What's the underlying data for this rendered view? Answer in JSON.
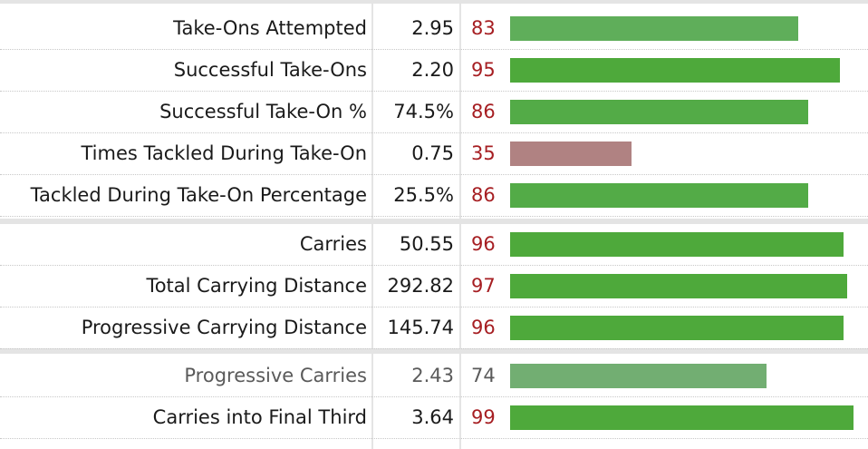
{
  "colors": {
    "percentile_text": "#a61e22",
    "muted_text": "#5a5a5a",
    "bar_high": "#4ea93b",
    "bar_mid": "#5fae5a",
    "bar_mid_muted": "#72ae72",
    "bar_low": "#b08282"
  },
  "chart_data": {
    "type": "bar",
    "xlim": [
      0,
      100
    ],
    "rows": [
      {
        "label": "Take-Ons Attempted",
        "value": "2.95",
        "percentile": 83,
        "color": "#5fae5a",
        "muted": false
      },
      {
        "label": "Successful Take-Ons",
        "value": "2.20",
        "percentile": 95,
        "color": "#4ea93b",
        "muted": false
      },
      {
        "label": "Successful Take-On %",
        "value": "74.5%",
        "percentile": 86,
        "color": "#53ab47",
        "muted": false
      },
      {
        "label": "Times Tackled During Take-On",
        "value": "0.75",
        "percentile": 35,
        "color": "#b08282",
        "muted": false
      },
      {
        "label": "Tackled During Take-On Percentage",
        "value": "25.5%",
        "percentile": 86,
        "color": "#53ab47",
        "muted": false
      },
      {
        "label": "Carries",
        "value": "50.55",
        "percentile": 96,
        "color": "#4ea93b",
        "muted": false
      },
      {
        "label": "Total Carrying Distance",
        "value": "292.82",
        "percentile": 97,
        "color": "#4ea93b",
        "muted": false
      },
      {
        "label": "Progressive Carrying Distance",
        "value": "145.74",
        "percentile": 96,
        "color": "#4ea93b",
        "muted": false
      },
      {
        "label": "Progressive Carries",
        "value": "2.43",
        "percentile": 74,
        "color": "#72ae72",
        "muted": true
      },
      {
        "label": "Carries into Final Third",
        "value": "3.64",
        "percentile": 99,
        "color": "#4ea93b",
        "muted": false
      }
    ]
  }
}
